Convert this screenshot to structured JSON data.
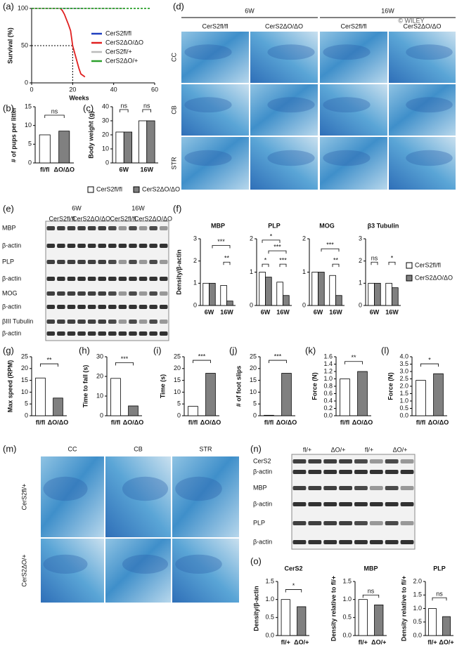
{
  "chart_data": [
    {
      "type": "line",
      "xlabel": "Weeks",
      "ylabel": "Survival (%)",
      "xlim": [
        0,
        60
      ],
      "ylim": [
        0,
        100
      ],
      "xticks": [
        0,
        20,
        40,
        60
      ],
      "yticks": [
        0,
        50,
        100
      ],
      "reference_lines": [
        {
          "x": 20,
          "y": 50
        }
      ],
      "series": [
        {
          "name": "CerS2fl/fl",
          "color": "#1f3fbf",
          "x": [
            0,
            25
          ],
          "values": [
            100,
            100
          ]
        },
        {
          "name": "CerS2ΔO/ΔO",
          "color": "#e02020",
          "x": [
            0,
            14,
            15,
            16,
            17,
            18,
            19,
            20,
            21,
            22,
            23,
            24,
            26
          ],
          "values": [
            100,
            100,
            97,
            92,
            85,
            78,
            70,
            50,
            40,
            30,
            20,
            12,
            8
          ]
        },
        {
          "name": "CerS2fl/+",
          "color": "#bbbbbb",
          "x": [
            0,
            45
          ],
          "values": [
            100,
            100
          ]
        },
        {
          "name": "CerS2ΔO/+",
          "color": "#2ca02c",
          "x": [
            0,
            58
          ],
          "values": [
            100,
            100
          ],
          "dashed": true
        }
      ]
    },
    {
      "type": "bar",
      "ylabel": "# of pups per litter",
      "categories": [
        "fl/fl",
        "ΔO/ΔO"
      ],
      "values": [
        7.5,
        8.5
      ],
      "colors": [
        "#ffffff",
        "#808080"
      ],
      "ylim": [
        0,
        15
      ],
      "yticks": [
        0,
        5,
        10,
        15
      ],
      "annotations": [
        "ns"
      ]
    },
    {
      "type": "bar",
      "ylabel": "Body weight (g)",
      "categories": [
        "6W",
        "16W"
      ],
      "series": [
        {
          "name": "CerS2fl/fl",
          "color": "#ffffff",
          "values": [
            22,
            30
          ]
        },
        {
          "name": "CerS2ΔO/ΔO",
          "color": "#808080",
          "values": [
            22,
            30
          ]
        }
      ],
      "ylim": [
        0,
        40
      ],
      "yticks": [
        0,
        10,
        20,
        30,
        40
      ],
      "annotations": [
        "ns",
        "ns"
      ]
    },
    {
      "type": "bar",
      "title": "MBP",
      "ylabel": "Density/β-actin",
      "categories": [
        "6W",
        "16W"
      ],
      "series": [
        {
          "name": "CerS2fl/fl",
          "color": "#ffffff",
          "values": [
            1.0,
            0.9
          ]
        },
        {
          "name": "CerS2ΔO/ΔO",
          "color": "#808080",
          "values": [
            1.0,
            0.2
          ]
        }
      ],
      "ylim": [
        0,
        3
      ],
      "yticks": [
        0,
        1,
        2,
        3
      ],
      "annotations": [
        "***",
        "**"
      ]
    },
    {
      "type": "bar",
      "title": "PLP",
      "categories": [
        "6W",
        "16W"
      ],
      "series": [
        {
          "name": "CerS2fl/fl",
          "color": "#ffffff",
          "values": [
            1.0,
            0.7
          ]
        },
        {
          "name": "CerS2ΔO/ΔO",
          "color": "#808080",
          "values": [
            0.85,
            0.3
          ]
        }
      ],
      "ylim": [
        0,
        2
      ],
      "yticks": [
        0,
        1,
        2
      ],
      "annotations": [
        "*",
        "***",
        "*",
        "***"
      ]
    },
    {
      "type": "bar",
      "title": "MOG",
      "categories": [
        "6W",
        "16W"
      ],
      "series": [
        {
          "name": "CerS2fl/fl",
          "color": "#ffffff",
          "values": [
            1.0,
            0.9
          ]
        },
        {
          "name": "CerS2ΔO/ΔO",
          "color": "#808080",
          "values": [
            1.0,
            0.3
          ]
        }
      ],
      "ylim": [
        0,
        2
      ],
      "yticks": [
        0,
        1,
        2
      ],
      "annotations": [
        "***",
        "**"
      ]
    },
    {
      "type": "bar",
      "title": "β3 Tubulin",
      "categories": [
        "6W",
        "16W"
      ],
      "series": [
        {
          "name": "CerS2fl/fl",
          "color": "#ffffff",
          "values": [
            1.0,
            1.0
          ]
        },
        {
          "name": "CerS2ΔO/ΔO",
          "color": "#808080",
          "values": [
            1.0,
            0.8
          ]
        }
      ],
      "ylim": [
        0,
        3
      ],
      "yticks": [
        0,
        1,
        2,
        3
      ],
      "annotations": [
        "ns",
        "*"
      ]
    },
    {
      "type": "bar",
      "ylabel": "Max speed (RPM)",
      "categories": [
        "fl/fl",
        "ΔO/ΔO"
      ],
      "values": [
        16,
        7.5
      ],
      "colors": [
        "#ffffff",
        "#808080"
      ],
      "ylim": [
        0,
        25
      ],
      "yticks": [
        0,
        5,
        10,
        15,
        20,
        25
      ],
      "annotations": [
        "**"
      ]
    },
    {
      "type": "bar",
      "ylabel": "Time to fall (s)",
      "categories": [
        "fl/fl",
        "ΔO/ΔO"
      ],
      "values": [
        19,
        5
      ],
      "colors": [
        "#ffffff",
        "#808080"
      ],
      "ylim": [
        0,
        30
      ],
      "yticks": [
        0,
        10,
        20,
        30
      ],
      "annotations": [
        "***"
      ]
    },
    {
      "type": "bar",
      "ylabel": "Time (s)",
      "categories": [
        "fl/fl",
        "ΔO/ΔO"
      ],
      "values": [
        4,
        18
      ],
      "colors": [
        "#ffffff",
        "#808080"
      ],
      "ylim": [
        0,
        25
      ],
      "yticks": [
        0,
        5,
        10,
        15,
        20,
        25
      ],
      "annotations": [
        "***"
      ]
    },
    {
      "type": "bar",
      "ylabel": "# of foot slips",
      "categories": [
        "fl/fl",
        "ΔO/ΔO"
      ],
      "values": [
        0.2,
        18
      ],
      "colors": [
        "#ffffff",
        "#808080"
      ],
      "ylim": [
        0,
        25
      ],
      "yticks": [
        0,
        5,
        10,
        15,
        20,
        25
      ],
      "annotations": [
        "***"
      ]
    },
    {
      "type": "bar",
      "ylabel": "Force (N)",
      "categories": [
        "fl/fl",
        "ΔO/ΔO"
      ],
      "values": [
        1.0,
        1.2
      ],
      "colors": [
        "#ffffff",
        "#808080"
      ],
      "ylim": [
        0,
        1.6
      ],
      "yticks": [
        {
          "value": 0,
          "label": "0.0"
        },
        0.2,
        0.4,
        0.6,
        0.8,
        {
          "value": 1,
          "label": "1.0"
        },
        1.2,
        1.4,
        1.6
      ],
      "annotations": [
        "**"
      ]
    },
    {
      "type": "bar",
      "ylabel": "Force (N)",
      "categories": [
        "fl/fl",
        "ΔO/ΔO"
      ],
      "values": [
        2.4,
        2.85
      ],
      "colors": [
        "#ffffff",
        "#808080"
      ],
      "ylim": [
        0,
        4
      ],
      "yticks": [
        {
          "value": 0,
          "label": "0.0"
        },
        0.5,
        {
          "value": 1,
          "label": "1.0"
        },
        1.5,
        {
          "value": 2,
          "label": "2.0"
        },
        2.5,
        {
          "value": 3,
          "label": "3.0"
        },
        3.5,
        {
          "value": 4,
          "label": "4.0"
        }
      ],
      "annotations": [
        "*"
      ]
    },
    {
      "type": "bar",
      "title": "CerS2",
      "ylabel": "Density/β-actin",
      "categories": [
        "fl/+",
        "ΔO/+"
      ],
      "values": [
        1.0,
        0.8
      ],
      "colors": [
        "#ffffff",
        "#808080"
      ],
      "ylim": [
        0,
        1.5
      ],
      "yticks": [
        {
          "value": 0,
          "label": "0.0"
        },
        0.5,
        {
          "value": 1,
          "label": "1.0"
        },
        1.5
      ],
      "annotations": [
        "*"
      ]
    },
    {
      "type": "bar",
      "title": "MBP",
      "ylabel": "Density relative to fl/+",
      "categories": [
        "fl/+",
        "ΔO/+"
      ],
      "values": [
        1.0,
        0.85
      ],
      "colors": [
        "#ffffff",
        "#808080"
      ],
      "ylim": [
        0,
        1.5
      ],
      "yticks": [
        {
          "value": 0,
          "label": "0.0"
        },
        0.5,
        {
          "value": 1,
          "label": "1.0"
        },
        1.5
      ],
      "annotations": [
        "ns"
      ]
    },
    {
      "type": "bar",
      "title": "PLP",
      "ylabel": "Density relative to fl/+",
      "categories": [
        "fl/+",
        "ΔO/+"
      ],
      "values": [
        1.0,
        0.7
      ],
      "colors": [
        "#ffffff",
        "#808080"
      ],
      "ylim": [
        0,
        2
      ],
      "yticks": [
        {
          "value": 0,
          "label": "0.0"
        },
        0.5,
        {
          "value": 1,
          "label": "1.0"
        },
        1.5,
        {
          "value": 2,
          "label": "2.0"
        }
      ],
      "annotations": [
        "ns"
      ]
    }
  ],
  "figure": {
    "panel_labels": [
      "(a)",
      "(b)",
      "(c)",
      "(d)",
      "(e)",
      "(f)",
      "(g)",
      "(h)",
      "(i)",
      "(j)",
      "(k)",
      "(l)",
      "(m)",
      "(n)",
      "(o)"
    ],
    "d": {
      "groups": [
        "6W",
        "16W"
      ],
      "columns": [
        "CerS2fl/fl",
        "CerS2ΔO/ΔO",
        "CerS2fl/fl",
        "CerS2ΔO/ΔO"
      ],
      "rows": [
        "CC",
        "CB",
        "STR"
      ],
      "watermark": "© WILEY"
    },
    "e": {
      "groups": [
        "6W",
        "16W"
      ],
      "columns": [
        "CerS2fl/fl",
        "CerS2ΔO/ΔO",
        "CerS2fl/fl",
        "CerS2ΔO/ΔO"
      ],
      "rows": [
        "MBP",
        "β-actin",
        "PLP",
        "β-actin",
        "MOG",
        "β-actin",
        "βIII Tubulin",
        "β-actin"
      ]
    },
    "m": {
      "columns": [
        "CC",
        "CB",
        "STR"
      ],
      "rows": [
        "CerS2fl/+",
        "CerS2ΔO/+"
      ]
    },
    "n": {
      "columns": [
        "fl/+",
        "ΔO/+",
        "fl/+",
        "ΔO/+"
      ],
      "rows": [
        "CerS2",
        "β-actin",
        "MBP",
        "β-actin",
        "PLP",
        "β-actin"
      ]
    }
  }
}
